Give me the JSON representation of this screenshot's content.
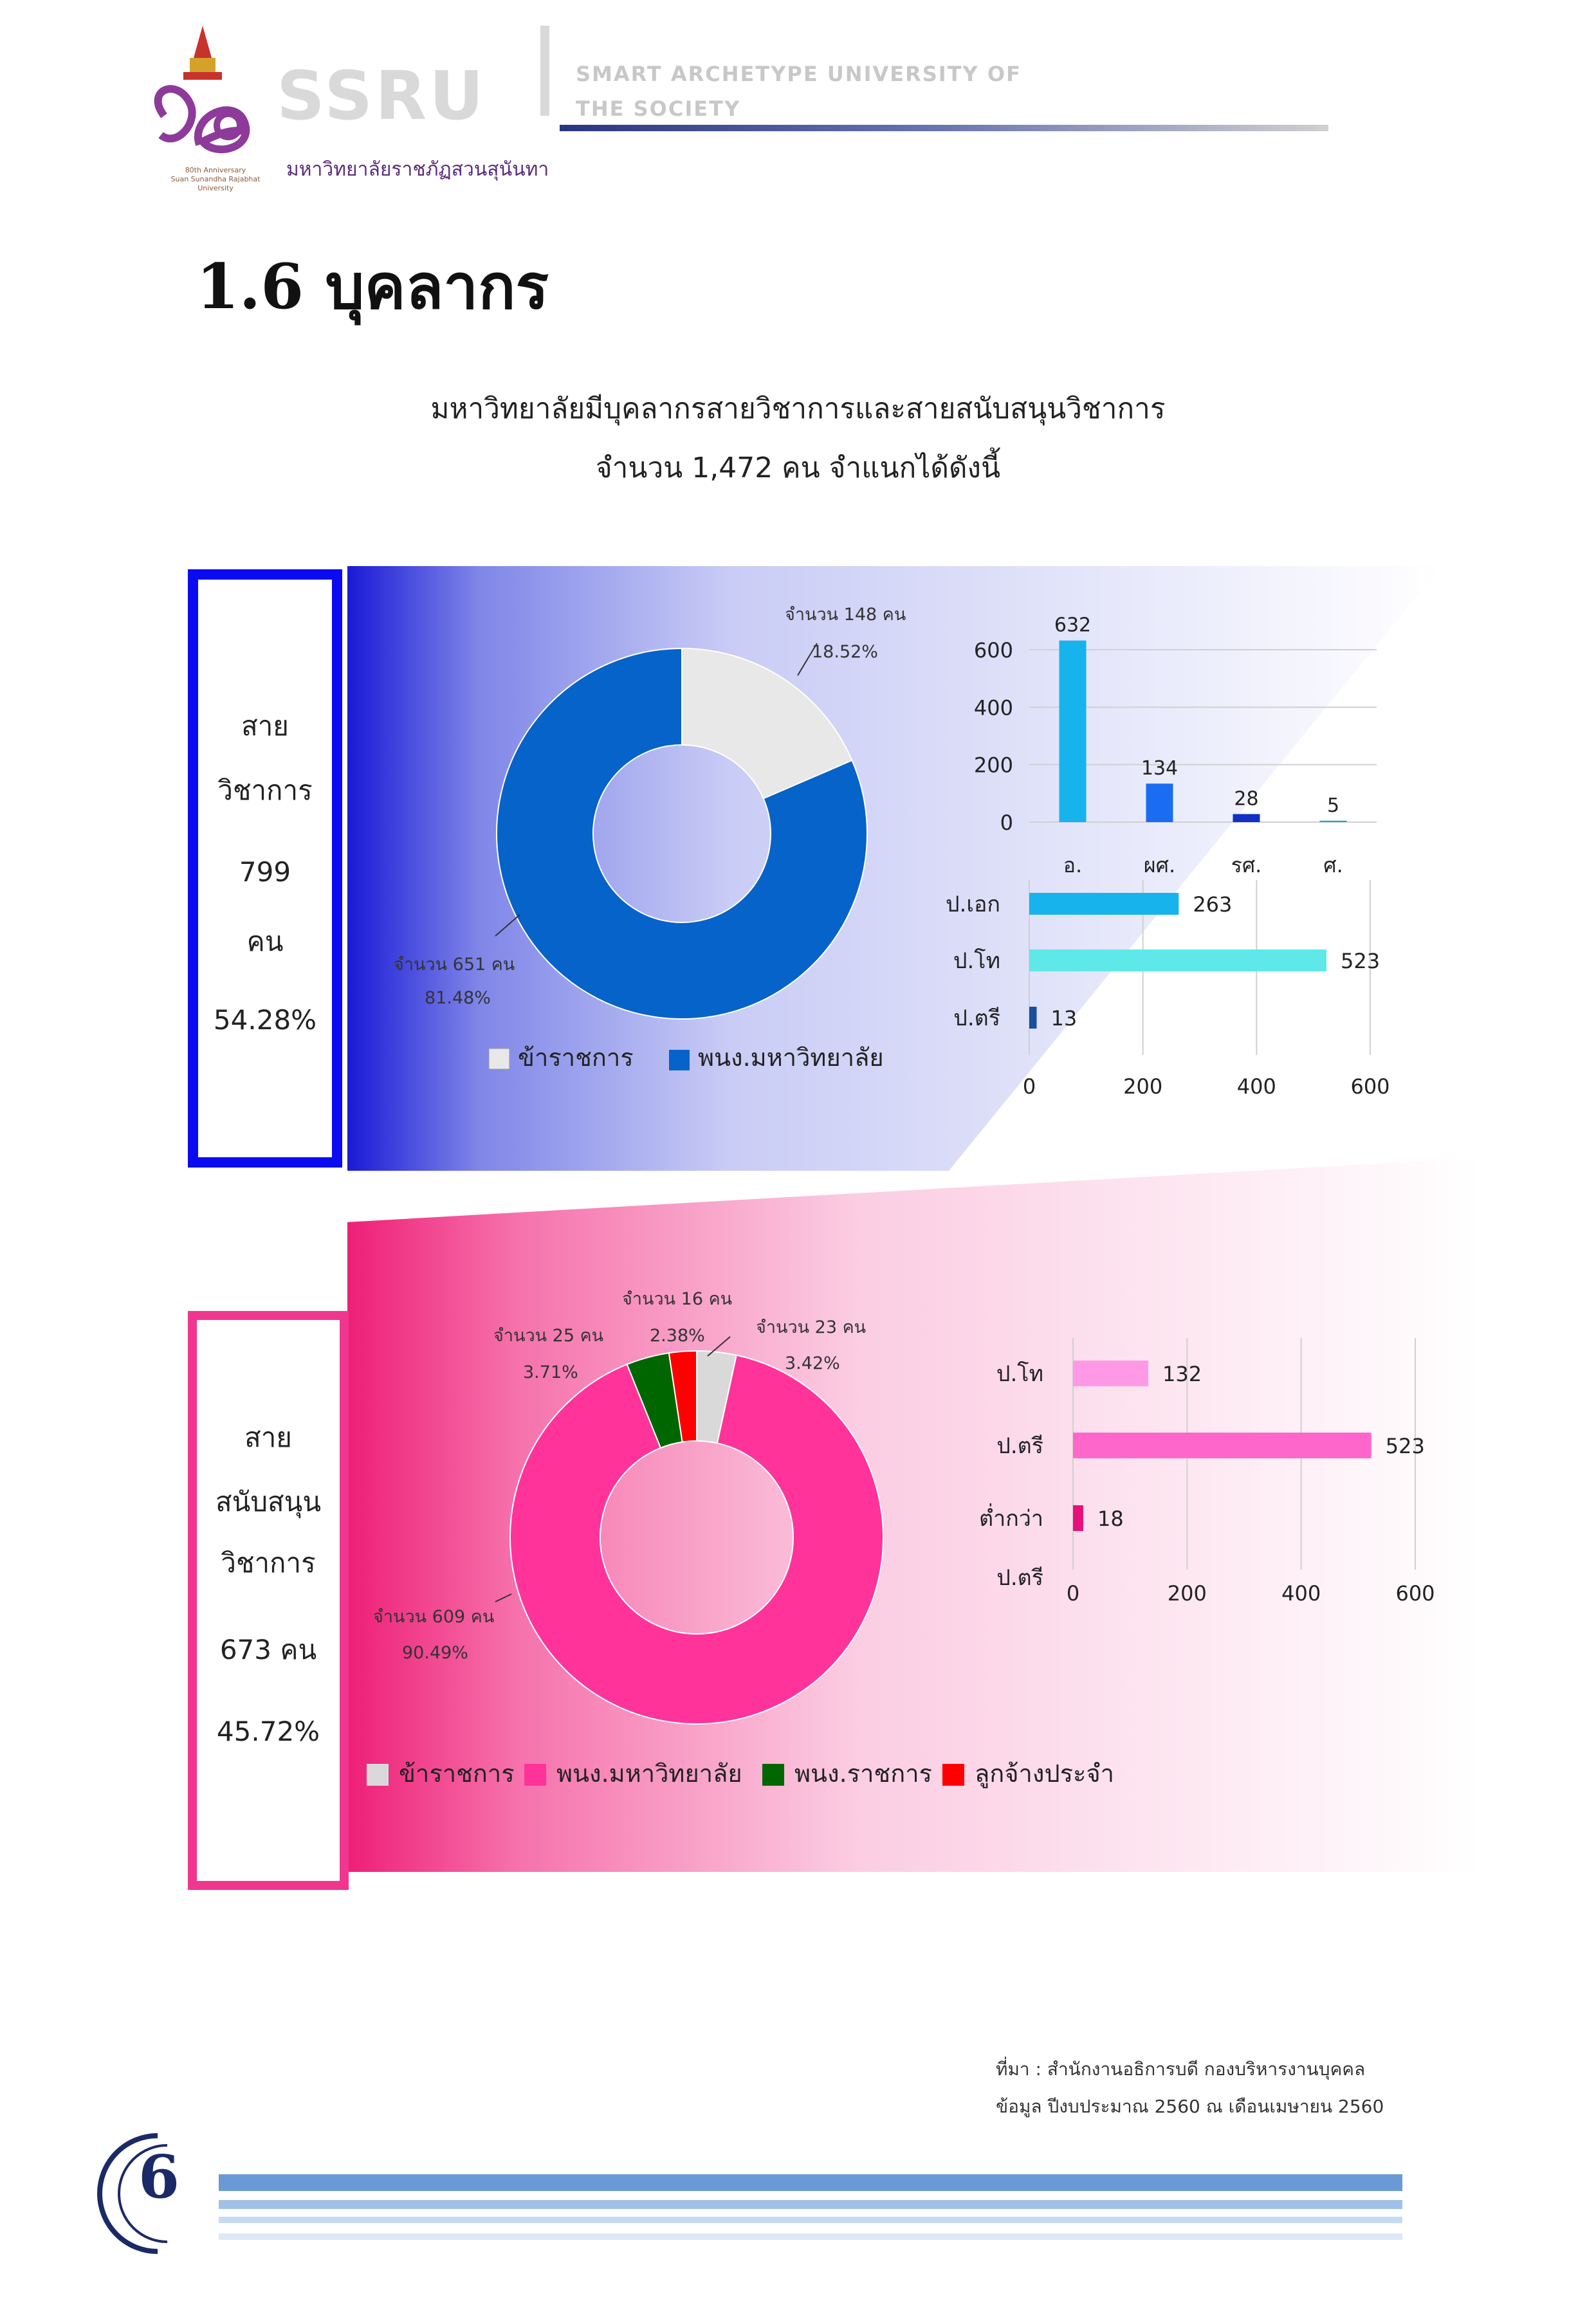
{
  "header": {
    "brand": "SSRU",
    "tagline_line1": "SMART ARCHETYPE UNIVERSITY OF",
    "tagline_line2": "THE SOCIETY",
    "university": "มหาวิทยาลัยราชภัฏสวนสุนันทา",
    "anniversary_line1": "80th Anniversary",
    "anniversary_line2": "Suan Sunandha Rajabhat University"
  },
  "title": "1.6 บุคลากร",
  "intro": {
    "line1": "มหาวิทยาลัยมีบุคลากรสายวิชาการและสายสนับสนุนวิชาการ",
    "line2": "จำนวน 1,472 คน จำแนกได้ดังนี้"
  },
  "academic_box": {
    "line1": "สาย",
    "line2": "วิชาการ",
    "count": "799",
    "unit": "คน",
    "percent": "54.28%"
  },
  "support_box": {
    "line1": "สาย",
    "line2": "สนับสนุน",
    "line3": "วิชาการ",
    "count": "673 คน",
    "percent": "45.72%"
  },
  "colors": {
    "academic_border": "#0b0bf2",
    "support_border": "#f1368f",
    "donut1_civil": "#e8e8e8",
    "donut1_staff": "#0563c9",
    "donut2_staff": "#ff3399",
    "donut2_gov": "#006600",
    "donut2_worker": "#ff0000",
    "donut2_civil": "#d9d9d9"
  },
  "chart_data": [
    {
      "type": "pie",
      "id": "academic_donut",
      "categories": [
        "ข้าราชการ",
        "พนง.มหาวิทยาลัย"
      ],
      "values": [
        148,
        651
      ],
      "percents": [
        "18.52%",
        "81.48%"
      ],
      "count_labels": [
        "จำนวน 148 คน",
        "จำนวน 651 คน"
      ],
      "legend": [
        "ข้าราชการ",
        "พนง.มหาวิทยาลัย"
      ]
    },
    {
      "type": "bar",
      "id": "academic_rank",
      "categories": [
        "อ.",
        "ผศ.",
        "รศ.",
        "ศ."
      ],
      "values": [
        632,
        134,
        28,
        5
      ],
      "yticks": [
        "0",
        "200",
        "400",
        "600"
      ],
      "ylim": [
        0,
        600
      ]
    },
    {
      "type": "bar",
      "orientation": "horizontal",
      "id": "academic_degree",
      "categories": [
        "ป.เอก",
        "ป.โท",
        "ป.ตรี"
      ],
      "values": [
        263,
        523,
        13
      ],
      "xticks": [
        "0",
        "200",
        "400",
        "600"
      ],
      "xlim": [
        0,
        600
      ]
    },
    {
      "type": "pie",
      "id": "support_donut",
      "categories": [
        "ข้าราชการ",
        "พนง.มหาวิทยาลัย",
        "พนง.ราชการ",
        "ลูกจ้างประจำ"
      ],
      "values": [
        23,
        609,
        25,
        16
      ],
      "percents": [
        "3.42%",
        "90.49%",
        "3.71%",
        "2.38%"
      ],
      "count_labels": [
        "จำนวน 23 คน",
        "จำนวน 609 คน",
        "จำนวน 25 คน",
        "จำนวน 16 คน"
      ],
      "legend": [
        "ข้าราชการ",
        "พนง.มหาวิทยาลัย",
        "พนง.ราชการ",
        "ลูกจ้างประจำ"
      ]
    },
    {
      "type": "bar",
      "orientation": "horizontal",
      "id": "support_degree",
      "categories": [
        "ป.โท",
        "ป.ตรี",
        "ต่ำกว่า ป.ตรี"
      ],
      "category_lines": [
        [
          "ป.โท"
        ],
        [
          "ป.ตรี"
        ],
        [
          "ต่ำกว่า",
          "ป.ตรี"
        ]
      ],
      "values": [
        132,
        523,
        18
      ],
      "xticks": [
        "0",
        "200",
        "400",
        "600"
      ],
      "xlim": [
        0,
        600
      ]
    }
  ],
  "footer": {
    "source_line1": "ที่มา : สำนักงานอธิการบดี กองบริหารงานบุคคล",
    "source_line2": "ข้อมูล ปีงบประมาณ 2560 ณ เดือนเมษายน 2560",
    "page_number": "6"
  }
}
